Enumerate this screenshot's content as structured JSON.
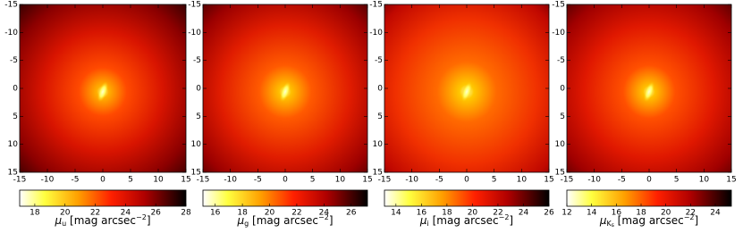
{
  "chart_data": [
    {
      "type": "heatmap",
      "xlim": [
        -15,
        15
      ],
      "ylim": [
        15,
        -15
      ],
      "xticks": [
        -15,
        -10,
        -5,
        0,
        5,
        10,
        15
      ],
      "yticks": [
        -15,
        -10,
        -5,
        0,
        5,
        10,
        15
      ],
      "colorbar": {
        "lim": [
          17,
          28
        ],
        "ticks": [
          18,
          20,
          22,
          24,
          26,
          28
        ],
        "label": {
          "symbol": "μ",
          "sub": "u",
          "unit": " [mag arcsec",
          "sup": "−2",
          "close": "]"
        }
      }
    },
    {
      "type": "heatmap",
      "xlim": [
        -15,
        15
      ],
      "ylim": [
        15,
        -15
      ],
      "xticks": [
        -15,
        -10,
        -5,
        0,
        5,
        10,
        15
      ],
      "yticks": [
        -15,
        -10,
        -5,
        0,
        5,
        10,
        15
      ],
      "colorbar": {
        "lim": [
          15.1,
          27.2
        ],
        "ticks": [
          16,
          18,
          20,
          22,
          24,
          26
        ],
        "label": {
          "symbol": "μ",
          "sub": "g",
          "unit": " [mag arcsec",
          "sup": "−2",
          "close": "]"
        }
      }
    },
    {
      "type": "heatmap",
      "xlim": [
        -15,
        15
      ],
      "ylim": [
        15,
        -15
      ],
      "xticks": [
        -15,
        -10,
        -5,
        0,
        5,
        10,
        15
      ],
      "yticks": [
        -15,
        -10,
        -5,
        0,
        5,
        10,
        15
      ],
      "colorbar": {
        "lim": [
          13.1,
          26
        ],
        "ticks": [
          14,
          16,
          18,
          20,
          22,
          24,
          26
        ],
        "label": {
          "symbol": "μ",
          "sub": "i",
          "unit": " [mag arcsec",
          "sup": "−2",
          "close": "]"
        }
      }
    },
    {
      "type": "heatmap",
      "xlim": [
        -15,
        15
      ],
      "ylim": [
        15,
        -15
      ],
      "xticks": [
        -15,
        -10,
        -5,
        0,
        5,
        10,
        15
      ],
      "yticks": [
        -15,
        -10,
        -5,
        0,
        5,
        10,
        15
      ],
      "colorbar": {
        "lim": [
          12,
          25.3
        ],
        "ticks": [
          12,
          14,
          16,
          18,
          20,
          22,
          24
        ],
        "label": {
          "symbol": "μ",
          "sub": "K",
          "subsub": "s",
          "unit": " [mag arcsec",
          "sup": "−2",
          "close": "]"
        }
      }
    }
  ]
}
